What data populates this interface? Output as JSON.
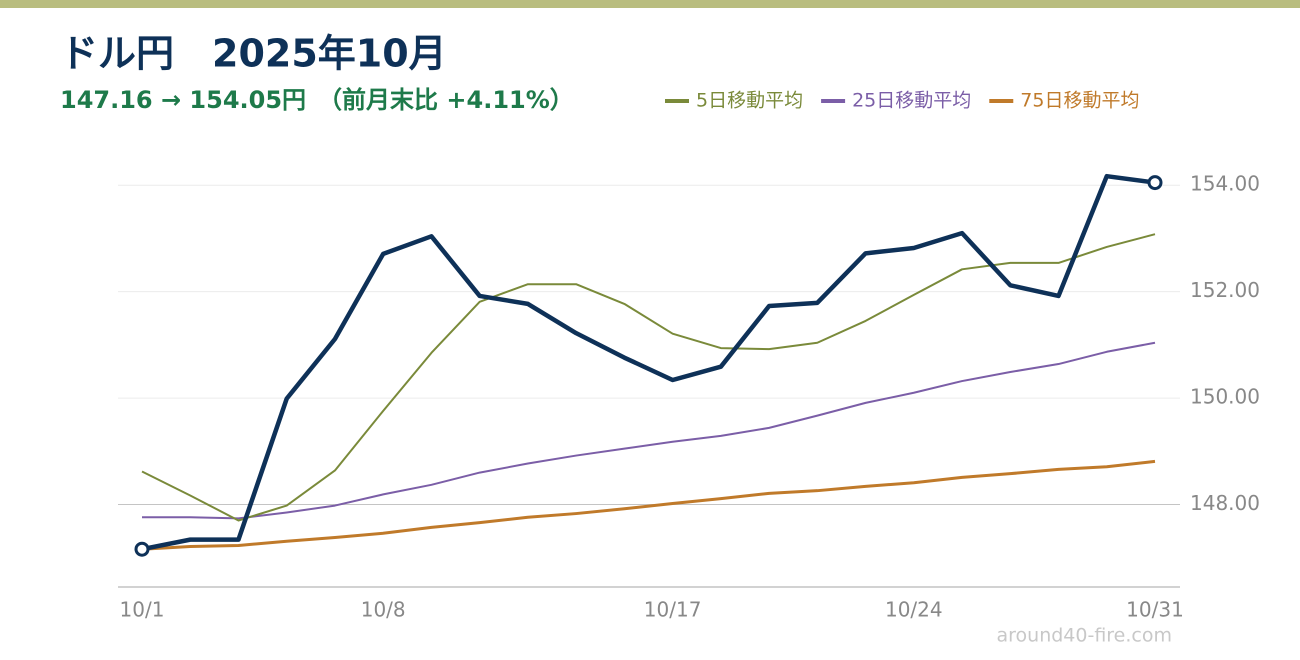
{
  "chart_data": {
    "type": "line",
    "title": "ドル円　2025年10月",
    "subtitle": "147.16 → 154.05円　（前月末比 +4.11%）",
    "source": "around40-fire.com",
    "categories": [
      "10/1",
      null,
      null,
      null,
      null,
      "10/8",
      null,
      null,
      null,
      null,
      null,
      "10/17",
      null,
      null,
      null,
      null,
      "10/24",
      null,
      null,
      null,
      null,
      "10/31"
    ],
    "color": "#0e3158",
    "values": [
      147.16,
      147.34,
      147.34,
      149.99,
      151.11,
      152.71,
      153.04,
      151.92,
      151.77,
      151.22,
      150.76,
      150.34,
      150.59,
      151.73,
      151.79,
      152.72,
      152.82,
      153.1,
      152.12,
      151.92,
      154.17,
      154.05
    ],
    "series": [
      {
        "name": "5日移動平均",
        "color": "#7a8a3a",
        "values": [
          148.62,
          148.17,
          147.7,
          147.98,
          148.64,
          149.76,
          150.85,
          151.81,
          152.14,
          152.14,
          151.77,
          151.21,
          150.94,
          150.92,
          151.04,
          151.45,
          151.94,
          152.42,
          152.54,
          152.54,
          152.84,
          153.08
        ]
      },
      {
        "name": "25日移動平均",
        "color": "#7b5ea7",
        "values": [
          147.76,
          147.76,
          147.74,
          147.85,
          147.98,
          148.19,
          148.37,
          148.6,
          148.77,
          148.92,
          149.05,
          149.18,
          149.29,
          149.44,
          149.67,
          149.91,
          150.1,
          150.32,
          150.49,
          150.64,
          150.87,
          151.04
        ]
      },
      {
        "name": "75日移動平均",
        "color": "#c07a2a",
        "values": [
          147.16,
          147.21,
          147.23,
          147.31,
          147.38,
          147.46,
          147.57,
          147.66,
          147.76,
          147.83,
          147.92,
          148.02,
          148.11,
          148.21,
          148.26,
          148.34,
          148.41,
          148.51,
          148.58,
          148.66,
          148.71,
          148.81
        ]
      }
    ],
    "ylim": [
      146.45,
      154.85
    ],
    "yticks": [
      {
        "value": 148,
        "label": "148.00"
      },
      {
        "value": 150,
        "label": "150.00"
      },
      {
        "value": 152,
        "label": "152.00"
      },
      {
        "value": 154,
        "label": "154.00"
      }
    ],
    "grid": true
  }
}
